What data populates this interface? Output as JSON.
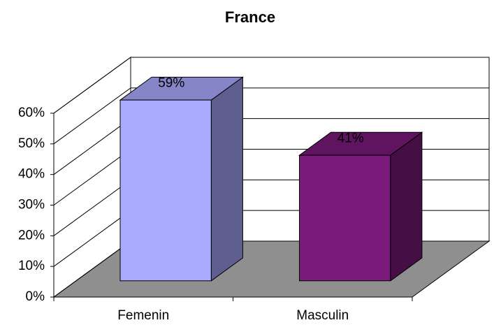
{
  "chart_data": {
    "type": "bar3d",
    "title": "France",
    "categories": [
      "Femenin",
      "Masculin"
    ],
    "values": [
      59,
      41
    ],
    "value_labels": [
      "59%",
      "41%"
    ],
    "colors": [
      "#aaaaff",
      "#7b1a7b"
    ],
    "ylim": [
      0,
      60
    ],
    "yticks": [
      {
        "value": 0,
        "label": "0%"
      },
      {
        "value": 10,
        "label": "10%"
      },
      {
        "value": 20,
        "label": "20%"
      },
      {
        "value": 30,
        "label": "30%"
      },
      {
        "value": 40,
        "label": "40%"
      },
      {
        "value": 50,
        "label": "50%"
      },
      {
        "value": 60,
        "label": "60%"
      }
    ],
    "grid": true
  }
}
